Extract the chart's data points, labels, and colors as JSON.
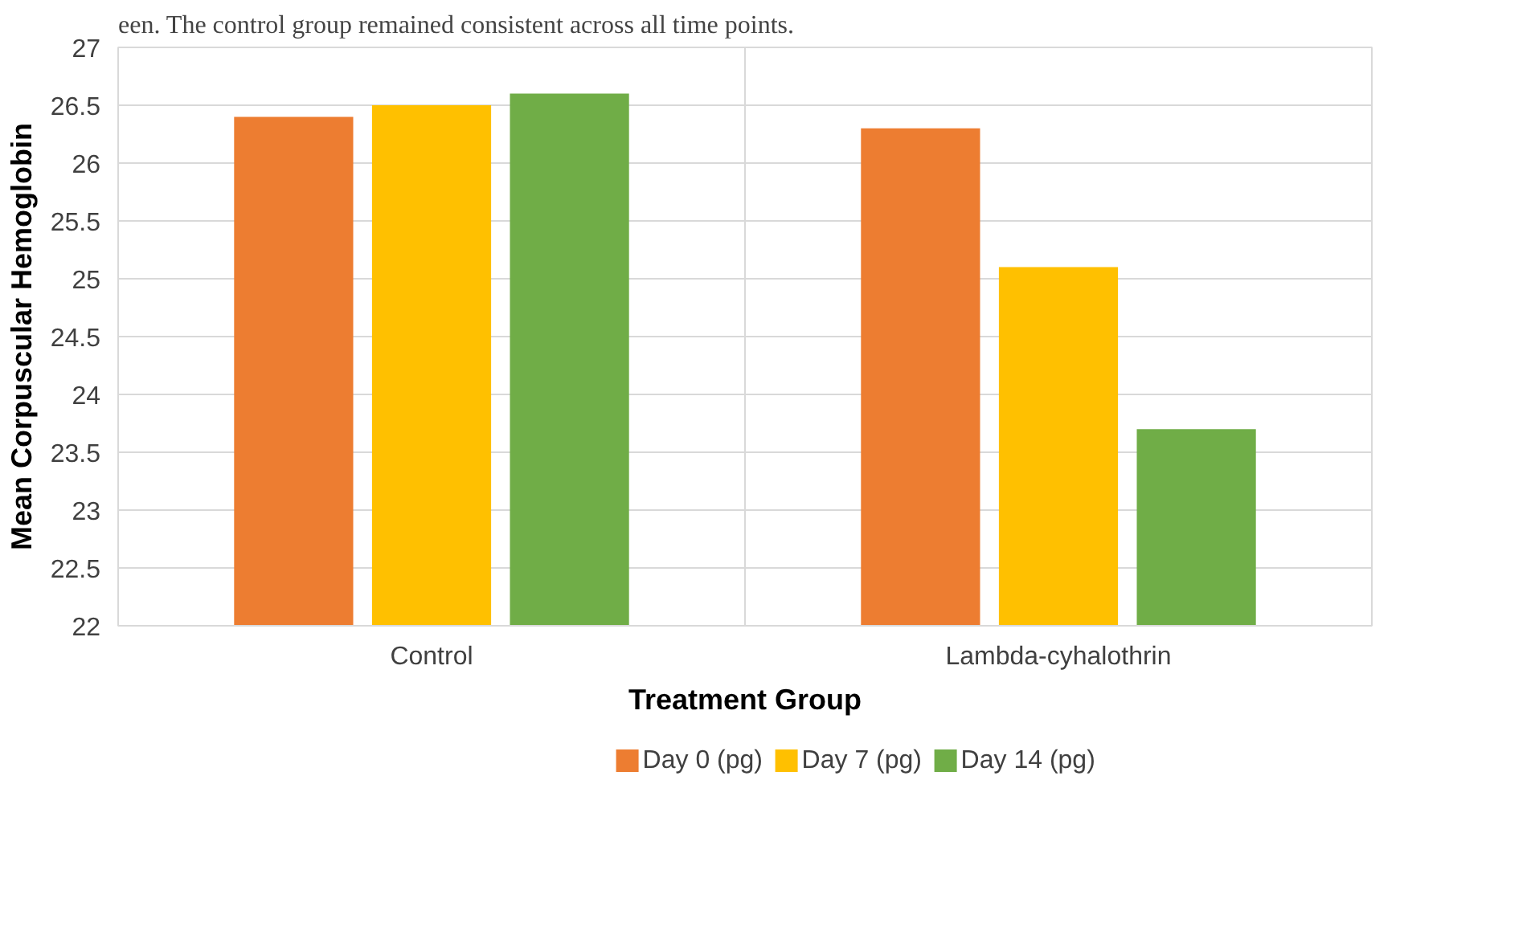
{
  "chart_data": {
    "type": "bar",
    "categories": [
      "Control",
      "Lambda-cyhalothrin"
    ],
    "series": [
      {
        "name": "Day 0 (pg)",
        "color": "#ed7d31",
        "values": [
          26.4,
          26.3
        ]
      },
      {
        "name": "Day 7 (pg)",
        "color": "#ffc000",
        "values": [
          26.5,
          25.1
        ]
      },
      {
        "name": "Day 14 (pg)",
        "color": "#70ad47",
        "values": [
          26.6,
          23.7
        ]
      }
    ],
    "xlabel": "Treatment Group",
    "ylabel": "Mean Corpuscular Hemoglobin",
    "ylim": [
      22,
      27
    ],
    "yticks": [
      22,
      22.5,
      23,
      23.5,
      24,
      24.5,
      25,
      25.5,
      26,
      26.5,
      27
    ],
    "grid": true,
    "legend": "bottom",
    "annotations": [
      "een. The control group remained consistent across all time points."
    ]
  }
}
